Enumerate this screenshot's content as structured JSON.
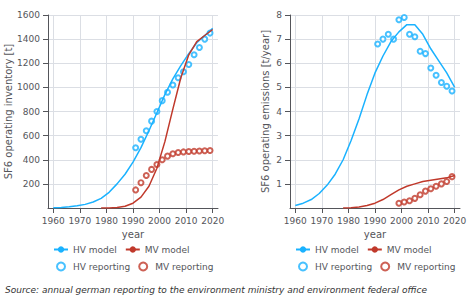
{
  "chart_data": [
    {
      "type": "line",
      "xlabel": "year",
      "ylabel": "SF6 operating inventory [t]",
      "annotations": [
        "Source: annual german reporting to the environment ministry and environment federal office"
      ],
      "xlim": [
        1958,
        2022
      ],
      "xticks": [
        1960,
        1970,
        1980,
        1990,
        2000,
        2010,
        2020
      ],
      "ylim": [
        0,
        1600
      ],
      "yticks": [
        200,
        400,
        600,
        800,
        1000,
        1200,
        1400,
        1600
      ],
      "grid": true,
      "legend": "bottom",
      "series": [
        {
          "name": "HV model",
          "type": "line",
          "color": "#1ab2ff",
          "x": [
            1960,
            1963,
            1966,
            1969,
            1972,
            1975,
            1978,
            1981,
            1984,
            1987,
            1990,
            1993,
            1996,
            1999,
            2002,
            2005,
            2008,
            2011,
            2014,
            2017,
            2020
          ],
          "values": [
            2,
            5,
            10,
            18,
            30,
            50,
            80,
            130,
            200,
            280,
            380,
            500,
            640,
            790,
            940,
            1070,
            1180,
            1280,
            1370,
            1430,
            1490
          ]
        },
        {
          "name": "MV model",
          "type": "line",
          "color": "#c0392b",
          "x": [
            1978,
            1981,
            1984,
            1987,
            1990,
            1993,
            1996,
            1999,
            2002,
            2005,
            2008,
            2011,
            2014,
            2017,
            2020
          ],
          "values": [
            0,
            1,
            5,
            15,
            40,
            90,
            180,
            330,
            550,
            820,
            1080,
            1270,
            1380,
            1430,
            1480
          ]
        },
        {
          "name": "HV reporting",
          "type": "scatter",
          "marker": "circle",
          "color": "#1ab2ff",
          "x": [
            1991,
            1993,
            1995,
            1997,
            1999,
            2001,
            2003,
            2005,
            2007,
            2009,
            2011,
            2013,
            2015,
            2017,
            2019
          ],
          "values": [
            500,
            570,
            640,
            720,
            800,
            890,
            960,
            1020,
            1080,
            1130,
            1190,
            1270,
            1330,
            1400,
            1450
          ]
        },
        {
          "name": "MV reporting",
          "type": "scatter",
          "marker": "circle",
          "color": "#c0392b",
          "x": [
            1991,
            1993,
            1995,
            1997,
            1999,
            2001,
            2003,
            2005,
            2007,
            2009,
            2011,
            2013,
            2015,
            2017,
            2019
          ],
          "values": [
            150,
            210,
            270,
            320,
            360,
            400,
            430,
            450,
            460,
            465,
            468,
            470,
            472,
            474,
            476
          ]
        }
      ]
    },
    {
      "type": "line",
      "xlabel": "year",
      "ylabel": "SF6 operating emissions [t/year]",
      "xlim": [
        1958,
        2022
      ],
      "xticks": [
        1960,
        1970,
        1980,
        1990,
        2000,
        2010,
        2020
      ],
      "ylim": [
        0,
        8
      ],
      "yticks": [
        1,
        2,
        3,
        4,
        5,
        6,
        7,
        8
      ],
      "grid": true,
      "legend": "bottom",
      "series": [
        {
          "name": "HV model",
          "type": "line",
          "color": "#1ab2ff",
          "x": [
            1960,
            1963,
            1966,
            1969,
            1972,
            1975,
            1978,
            1981,
            1984,
            1987,
            1990,
            1993,
            1996,
            1999,
            2002,
            2005,
            2008,
            2011,
            2014,
            2017,
            2020
          ],
          "values": [
            0.1,
            0.2,
            0.35,
            0.6,
            0.95,
            1.4,
            2.0,
            2.8,
            3.7,
            4.7,
            5.6,
            6.3,
            6.9,
            7.3,
            7.6,
            7.6,
            7.2,
            6.6,
            6.1,
            5.6,
            5.0
          ]
        },
        {
          "name": "MV model",
          "type": "line",
          "color": "#c0392b",
          "x": [
            1978,
            1981,
            1984,
            1987,
            1990,
            1993,
            1996,
            1999,
            2002,
            2005,
            2008,
            2011,
            2014,
            2017,
            2020
          ],
          "values": [
            0,
            0.01,
            0.04,
            0.1,
            0.2,
            0.35,
            0.55,
            0.75,
            0.9,
            1.0,
            1.1,
            1.15,
            1.2,
            1.25,
            1.35
          ]
        },
        {
          "name": "HV reporting",
          "type": "scatter",
          "marker": "circle",
          "color": "#1ab2ff",
          "x": [
            1991,
            1993,
            1995,
            1997,
            1999,
            2001,
            2003,
            2005,
            2007,
            2009,
            2011,
            2013,
            2015,
            2017,
            2019
          ],
          "values": [
            6.8,
            7.0,
            7.2,
            7.0,
            7.8,
            7.9,
            7.2,
            7.1,
            6.5,
            6.4,
            5.8,
            5.5,
            5.2,
            5.05,
            4.85
          ]
        },
        {
          "name": "MV reporting",
          "type": "scatter",
          "marker": "circle",
          "color": "#c0392b",
          "x": [
            1999,
            2001,
            2003,
            2005,
            2007,
            2009,
            2011,
            2013,
            2015,
            2017,
            2019
          ],
          "values": [
            0.2,
            0.25,
            0.3,
            0.4,
            0.55,
            0.7,
            0.8,
            0.9,
            1.0,
            1.1,
            1.3
          ]
        }
      ]
    }
  ]
}
